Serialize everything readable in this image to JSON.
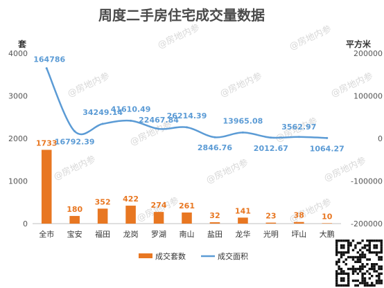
{
  "chart_data": {
    "type": "bar",
    "title": "周度二手房住宅成交量数据",
    "categories": [
      "全市",
      "宝安",
      "福田",
      "龙岗",
      "罗湖",
      "南山",
      "盐田",
      "龙华",
      "光明",
      "坪山",
      "大鹏"
    ],
    "left_axis": {
      "unit": "套",
      "min": 0,
      "max": 4000,
      "ticks": [
        "0",
        "1000",
        "2000",
        "3000",
        "4000"
      ]
    },
    "right_axis": {
      "unit": "平方米",
      "min": -200000,
      "max": 200000,
      "ticks": [
        "-200000",
        "-100000",
        "0",
        "100000",
        "200000"
      ]
    },
    "series": [
      {
        "name": "成交套数",
        "type": "bar",
        "axis": "left",
        "color": "#e87722",
        "values": [
          1733,
          180,
          352,
          422,
          274,
          261,
          32,
          141,
          23,
          38,
          10
        ],
        "labels": [
          "1733",
          "180",
          "352",
          "422",
          "274",
          "261",
          "32",
          "141",
          "23",
          "38",
          "10"
        ]
      },
      {
        "name": "成交面积",
        "type": "line",
        "axis": "right",
        "color": "#5b9bd5",
        "values": [
          164786,
          16792.39,
          34249.14,
          41610.49,
          22467.84,
          26214.39,
          2846.76,
          13965.08,
          2012.67,
          3562.97,
          1064.27
        ],
        "labels": [
          "164786",
          "16792.39",
          "34249.14",
          "41610.49",
          "22467.84",
          "26214.39",
          "2846.76",
          "13965.08",
          "2012.67",
          "3562.97",
          "1064.27"
        ]
      }
    ],
    "legend": {
      "position": "bottom"
    },
    "grid": false
  },
  "watermark": "@房地内参",
  "qr_icon": "qr-code-icon"
}
